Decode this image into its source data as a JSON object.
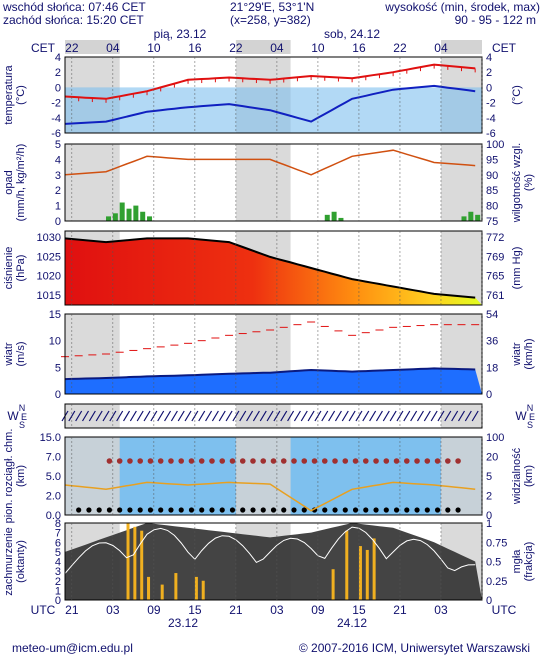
{
  "header": {
    "sunrise": "wschód słońca: 07:46 CET",
    "sunset": "zachód słońca: 15:20 CET",
    "coords": "21°29'E, 53°1'N",
    "grid": "(x=258,  y=382)",
    "altitude_label": "wysokość (min, środek, max)",
    "altitude_values": "90 - 95 - 122 m",
    "tz_left": "CET",
    "tz_right": "CET",
    "day1": "pią, 23.12",
    "day2": "sob, 24.12"
  },
  "top_ticks": [
    "22",
    "04",
    "10",
    "16",
    "22",
    "04",
    "10",
    "16",
    "22",
    "04"
  ],
  "bottom_ticks": [
    "21",
    "03",
    "09",
    "15",
    "21",
    "03",
    "09",
    "15",
    "21",
    "03"
  ],
  "bottom_tz_left": "UTC",
  "bottom_tz_right": "UTC",
  "bottom_day1": "23.12",
  "bottom_day2": "24.12",
  "footer": {
    "email": "meteo-um@icm.edu.pl",
    "copyright": "© 2007-2016 ICM, Uniwersytet Warszawski"
  },
  "colors": {
    "frame": "#10106e",
    "night_band": "#d3d3d3",
    "sky_blue": "#7ec0ee",
    "temperature": "#e01010",
    "dewpoint": "#1020c0",
    "humidity": "#d05010",
    "rain": "#30a030",
    "wind_mean": "#1e6eff",
    "wind_gust_fill": "#208020",
    "cloud": "#303030",
    "fog": "#f0b020"
  },
  "chart_data": [
    {
      "type": "line",
      "panel": "temperature",
      "ylabel_left": "temperatura\n(°C)",
      "ylabel_right": "(°C)",
      "ylim": [
        -6,
        4
      ],
      "yticks": [
        "4",
        "2",
        "0",
        "-2",
        "-4",
        "-6"
      ],
      "yticks_right": [
        "4",
        "2",
        "0",
        "-2",
        "-4",
        "-6"
      ],
      "x_hours": [
        0,
        6,
        12,
        18,
        24,
        30,
        36,
        42,
        48,
        54,
        60
      ],
      "series": [
        {
          "values": [
            -1.2,
            -1.5,
            -0.5,
            1.0,
            1.3,
            1.0,
            1.5,
            1.2,
            2.0,
            3.0,
            2.5
          ]
        },
        {
          "values": [
            -4.8,
            -4.5,
            -3.2,
            -2.6,
            -2.2,
            -3.0,
            -4.5,
            -1.5,
            -0.3,
            0.2,
            -0.5
          ]
        }
      ]
    },
    {
      "type": "line",
      "panel": "precipitation_humidity",
      "ylabel_left": "opad\n(mm/h, kg/m²/h)",
      "ylabel_right": "wilgotność wzgl.\n(%)",
      "ylim": [
        0,
        5
      ],
      "ylim_right": [
        75,
        100
      ],
      "yticks": [
        "5",
        "4",
        "3",
        "2",
        "1",
        "0"
      ],
      "yticks_right": [
        "100",
        "95",
        "90",
        "85",
        "80",
        "75"
      ],
      "x_hours": [
        0,
        6,
        12,
        18,
        24,
        30,
        36,
        42,
        48,
        54,
        60
      ],
      "humidity": [
        90,
        91,
        96,
        95,
        95,
        95,
        90,
        96,
        98,
        94,
        93
      ],
      "precip_hours": [
        6,
        7,
        8,
        9,
        10,
        11,
        12,
        38,
        39,
        40,
        58,
        59,
        60
      ],
      "precip": [
        0.3,
        0.5,
        1.2,
        0.8,
        1.0,
        0.6,
        0.3,
        0.4,
        0.6,
        0.2,
        0.3,
        0.6,
        0.4
      ]
    },
    {
      "type": "area",
      "panel": "pressure",
      "ylabel_left": "ciśnienie\n(hPa)",
      "ylabel_right": "(mm Hg)",
      "ylim": [
        1011,
        1031
      ],
      "yticks": [
        "1030",
        "1025",
        "1020",
        "1015"
      ],
      "yticks_right": [
        "772",
        "769",
        "765",
        "761"
      ],
      "x_hours": [
        0,
        6,
        12,
        18,
        24,
        30,
        36,
        42,
        48,
        54,
        60
      ],
      "values": [
        1029,
        1028,
        1029,
        1029,
        1028,
        1024,
        1021,
        1018,
        1016,
        1014,
        1013
      ]
    },
    {
      "type": "area",
      "panel": "wind",
      "ylabel_left": "wiatr\n(m/s)",
      "ylabel_right": "wiatr\n(km/h)",
      "ylim": [
        0,
        15
      ],
      "yticks": [
        "15",
        "10",
        "5",
        "0"
      ],
      "yticks_right": [
        "54",
        "36",
        "18",
        "0"
      ],
      "x_hours": [
        0,
        6,
        12,
        18,
        24,
        30,
        36,
        42,
        48,
        54,
        60
      ],
      "mean": [
        2.8,
        3.0,
        3.3,
        3.5,
        3.8,
        4.0,
        4.5,
        4.2,
        4.5,
        4.8,
        4.6
      ],
      "gust": [
        7.0,
        7.5,
        8.5,
        9.5,
        11.0,
        12.0,
        13.5,
        11.0,
        12.5,
        13.0,
        13.0
      ]
    },
    {
      "type": "line",
      "panel": "wind_direction",
      "ylabel_left": "W/E/N/S",
      "compass": [
        "N",
        "W",
        "E",
        "S"
      ]
    },
    {
      "type": "scatter",
      "panel": "cloud_base_visibility",
      "ylabel_left": "pion. rozciągł. chm.\n(km)",
      "ylabel_right": "widzialność\n(km)",
      "ylim": [
        0,
        15
      ],
      "yticks": [
        "15.0",
        "7.0",
        "5.0",
        "2.0",
        "0.0"
      ],
      "yticks_right": [
        "100",
        "20",
        "5",
        "2",
        "0"
      ],
      "x_hours": [
        0,
        6,
        12,
        18,
        24,
        30,
        36,
        42,
        48,
        54,
        60
      ],
      "visibility": [
        3.5,
        3.0,
        3.8,
        3.5,
        3.8,
        3.6,
        0.5,
        3.0,
        3.8,
        3.5,
        3.0
      ]
    },
    {
      "type": "bar",
      "panel": "cloud_fog",
      "ylabel_left": "zachmurzenie\n(oktanty)",
      "ylabel_right": "mgła\n(frakcja)",
      "ylim": [
        0,
        8
      ],
      "ylim_right": [
        0,
        1
      ],
      "yticks": [
        "8",
        "7",
        "6",
        "5",
        "4",
        "3",
        "2",
        "1",
        "0"
      ],
      "yticks_right": [
        "1",
        "0.75",
        "0.5",
        "0.25",
        "0"
      ],
      "x_hours": [
        0,
        6,
        12,
        18,
        24,
        30,
        36,
        42,
        48,
        54,
        60
      ],
      "cloud": [
        5,
        6.5,
        8,
        7.5,
        7,
        6.5,
        7,
        8,
        7.5,
        6,
        4
      ],
      "fog_hours": [
        9,
        10,
        11,
        12,
        14,
        16,
        19,
        20,
        39,
        41,
        43,
        44,
        45
      ],
      "fog": [
        1.0,
        0.95,
        0.9,
        0.3,
        0.2,
        0.35,
        0.3,
        0.25,
        0.4,
        0.9,
        0.7,
        0.65,
        0.8
      ]
    }
  ]
}
